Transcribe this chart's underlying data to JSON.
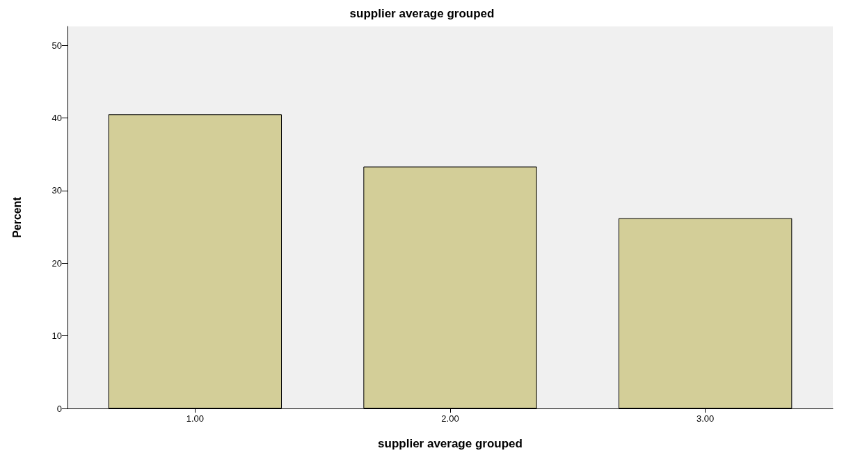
{
  "chart_data": {
    "type": "bar",
    "title": "supplier average grouped",
    "xlabel": "supplier average grouped",
    "ylabel": "Percent",
    "categories": [
      "1.00",
      "2.00",
      "3.00"
    ],
    "values": [
      40.5,
      33.3,
      26.2
    ],
    "color": "#d3ce98",
    "ylim": [
      0,
      52.6
    ],
    "yticks": [
      0,
      10,
      20,
      30,
      40,
      50
    ],
    "grid": false
  }
}
